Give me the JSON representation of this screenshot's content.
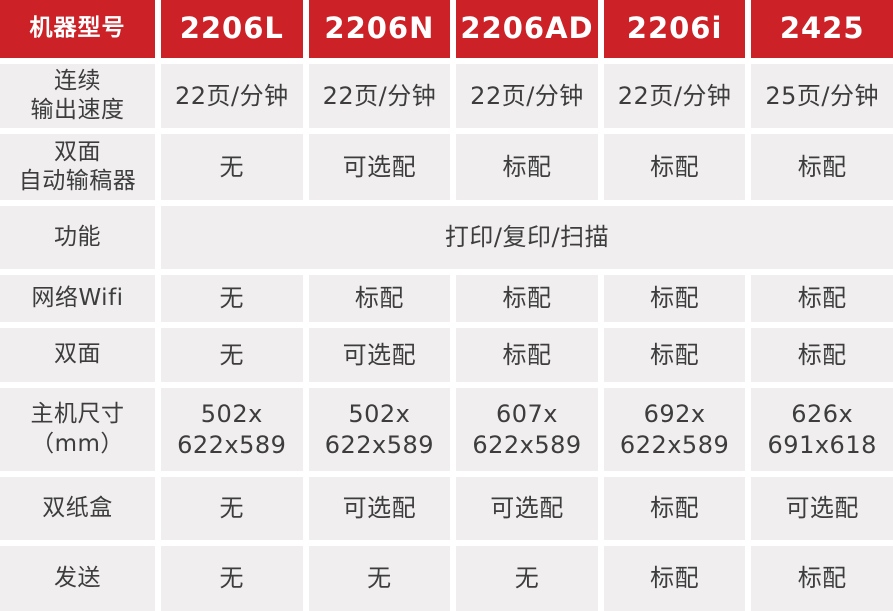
{
  "colors": {
    "header_bg": "#cb2127",
    "cell_bg": "#f0eeee",
    "header_text": "#ffffff",
    "body_text": "#3d3d3d"
  },
  "table": {
    "header": {
      "label": "机器型号",
      "models": [
        "2206L",
        "2206N",
        "2206AD",
        "2206i",
        "2425"
      ]
    },
    "rows": [
      {
        "label": "连续\n输出速度",
        "values": [
          "22页/分钟",
          "22页/分钟",
          "22页/分钟",
          "22页/分钟",
          "25页/分钟"
        ]
      },
      {
        "label": "双面\n自动输稿器",
        "values": [
          "无",
          "可选配",
          "标配",
          "标配",
          "标配"
        ]
      },
      {
        "label": "功能",
        "merged_value": "打印/复印/扫描"
      },
      {
        "label": "网络Wifi",
        "values": [
          "无",
          "标配",
          "标配",
          "标配",
          "标配"
        ]
      },
      {
        "label": "双面",
        "values": [
          "无",
          "可选配",
          "标配",
          "标配",
          "标配"
        ]
      },
      {
        "label": "主机尺寸\n（mm）",
        "values": [
          "502x\n622x589",
          "502x\n622x589",
          "607x\n622x589",
          "692x\n622x589",
          "626x\n691x618"
        ]
      },
      {
        "label": "双纸盒",
        "values": [
          "无",
          "可选配",
          "可选配",
          "标配",
          "可选配"
        ]
      },
      {
        "label": "发送",
        "values": [
          "无",
          "无",
          "无",
          "标配",
          "标配"
        ]
      }
    ]
  }
}
